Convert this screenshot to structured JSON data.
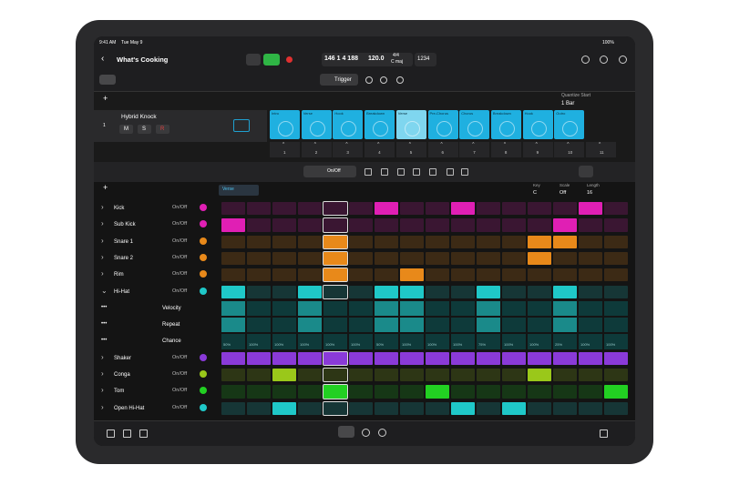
{
  "status_bar": {
    "time": "9:41 AM",
    "date": "Tue May 9",
    "battery": "100%"
  },
  "header": {
    "project": "What's Cooking",
    "position": "146 1 4 188",
    "tempo": "120.0",
    "signature": "4/4",
    "key": "C maj",
    "count_in": "1234"
  },
  "toolbar": {
    "mode": "Trigger",
    "quantize_label": "Quantize Start",
    "quantize_value": "1 Bar"
  },
  "track": {
    "number": "1",
    "name": "Hybrid Knock",
    "buttons": [
      "M",
      "S",
      "R"
    ]
  },
  "clips": [
    "Intro",
    "Verse",
    "Hook",
    "Breakdown",
    "Verse",
    "Pre-Chorus",
    "Chorus",
    "Breakdown",
    "Hook",
    "Outro"
  ],
  "columns": [
    "1",
    "2",
    "3",
    "4",
    "5",
    "6",
    "7",
    "8",
    "9",
    "10",
    "11"
  ],
  "step_sequencer": {
    "toggle": "On/Off",
    "pattern": "Verse",
    "key_label": "Key",
    "key": "C",
    "scale_label": "Scale",
    "scale": "Off",
    "length_label": "Length",
    "length": "16",
    "rows": [
      {
        "name": "Kick",
        "mode": "On/Off",
        "color": "#e01fb4",
        "steps": [
          0,
          0,
          0,
          0,
          0,
          0,
          1,
          0,
          0,
          1,
          0,
          0,
          0,
          0,
          1,
          0
        ]
      },
      {
        "name": "Sub Kick",
        "mode": "On/Off",
        "color": "#e01fb4",
        "steps": [
          1,
          0,
          0,
          0,
          0,
          0,
          0,
          0,
          0,
          0,
          0,
          0,
          0,
          1,
          0,
          0
        ]
      },
      {
        "name": "Snare 1",
        "mode": "On/Off",
        "color": "#e8891a",
        "steps": [
          0,
          0,
          0,
          0,
          1,
          0,
          0,
          0,
          0,
          0,
          0,
          0,
          1,
          1,
          0,
          0
        ]
      },
      {
        "name": "Snare 2",
        "mode": "On/Off",
        "color": "#e8891a",
        "steps": [
          0,
          0,
          0,
          0,
          1,
          0,
          0,
          0,
          0,
          0,
          0,
          0,
          1,
          0,
          0,
          0
        ]
      },
      {
        "name": "Rim",
        "mode": "On/Off",
        "color": "#e8891a",
        "steps": [
          0,
          0,
          0,
          0,
          1,
          0,
          0,
          1,
          0,
          0,
          0,
          0,
          0,
          0,
          0,
          0
        ]
      },
      {
        "name": "Hi-Hat",
        "mode": "On/Off",
        "color": "#1fc8c8",
        "steps": [
          1,
          0,
          0,
          1,
          0,
          0,
          1,
          1,
          0,
          0,
          1,
          0,
          0,
          1,
          0,
          0
        ]
      },
      {
        "name": "Shaker",
        "mode": "On/Off",
        "color": "#8a3ad8",
        "steps": [
          1,
          1,
          1,
          1,
          1,
          1,
          1,
          1,
          1,
          1,
          1,
          1,
          1,
          1,
          1,
          1
        ]
      },
      {
        "name": "Conga",
        "mode": "On/Off",
        "color": "#9ac81a",
        "steps": [
          0,
          0,
          1,
          0,
          0,
          0,
          0,
          0,
          0,
          0,
          0,
          0,
          1,
          0,
          0,
          0
        ]
      },
      {
        "name": "Tom",
        "mode": "On/Off",
        "color": "#22d022",
        "steps": [
          0,
          0,
          0,
          0,
          1,
          0,
          0,
          0,
          1,
          0,
          0,
          0,
          0,
          0,
          0,
          1
        ]
      },
      {
        "name": "Open Hi-Hat",
        "mode": "On/Off",
        "color": "#1fc8c8",
        "steps": [
          0,
          0,
          1,
          0,
          0,
          0,
          0,
          0,
          0,
          1,
          0,
          1,
          0,
          0,
          0,
          0
        ]
      }
    ],
    "sub_rows": [
      "Velocity",
      "Repeat",
      "Chance"
    ],
    "chance_values": [
      "50%",
      "100%",
      "100%",
      "100%",
      "100%",
      "100%",
      "50%",
      "100%",
      "100%",
      "100%",
      "75%",
      "100%",
      "100%",
      "25%",
      "100%",
      "100%"
    ]
  }
}
